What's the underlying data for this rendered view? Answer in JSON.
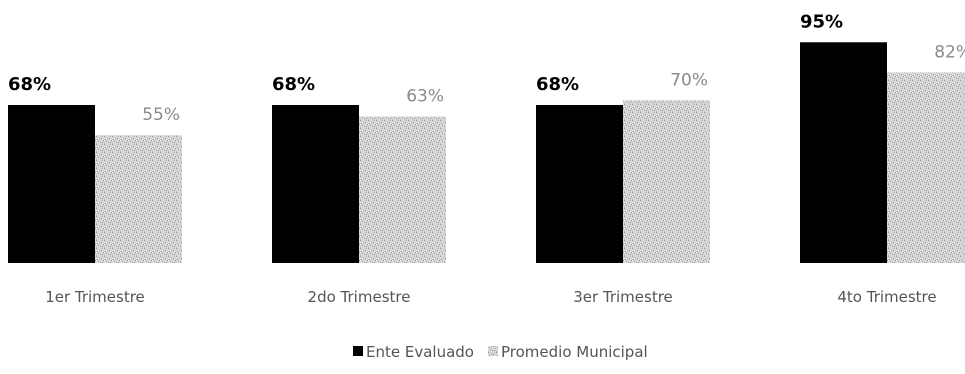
{
  "chart_data": {
    "type": "bar",
    "categories": [
      "1er Trimestre",
      "2do Trimestre",
      "3er Trimestre",
      "4to Trimestre"
    ],
    "series": [
      {
        "name": "Ente Evaluado",
        "values": [
          68,
          68,
          68,
          95
        ],
        "value_labels": [
          "68%",
          "68%",
          "68%",
          "95%"
        ],
        "color": "#000000"
      },
      {
        "name": "Promedio Municipal",
        "values": [
          55,
          63,
          70,
          82
        ],
        "value_labels": [
          "55%",
          "63%",
          "70%",
          "82%"
        ],
        "color": "#c8c8c8"
      }
    ],
    "ylim": [
      0,
      100
    ],
    "grid": false,
    "legend": "bottom-center"
  }
}
